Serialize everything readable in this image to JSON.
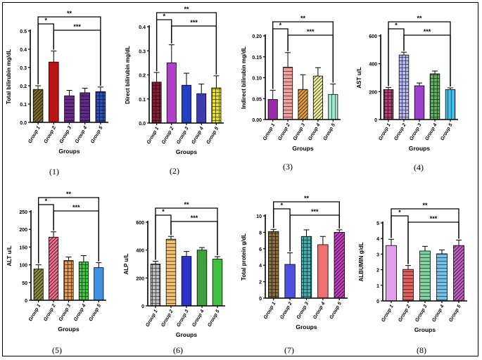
{
  "figure": {
    "xlabel": "Groups",
    "colors": {
      "axis": "#000000",
      "error": "#000000",
      "pattern_lines": "#000000"
    }
  },
  "chart_data": [
    {
      "panel_label": "(1)",
      "type": "bar",
      "ylabel": "Total bilirubin mg/dL",
      "categories": [
        "Group 1",
        "Group 2",
        "Group 3",
        "Group 4",
        "Group 5"
      ],
      "values": [
        0.18,
        0.33,
        0.145,
        0.162,
        0.168
      ],
      "errors": [
        0.02,
        0.06,
        0.03,
        0.025,
        0.025
      ],
      "ylim": [
        0,
        0.5
      ],
      "yticks": [
        "0.0",
        "0.1",
        "0.2",
        "0.3",
        "0.4",
        "0.5"
      ],
      "colors": [
        "#7a6a2c",
        "#b81414",
        "#6a2a8a",
        "#5e2a86",
        "#2d4fb8"
      ],
      "patterns": [
        "hatch",
        "solid",
        "hlines",
        "hlines",
        "grid"
      ],
      "significance": [
        {
          "from": 1,
          "to": 2,
          "label": "*"
        },
        {
          "from": 1,
          "to": 5,
          "label": "**"
        },
        {
          "from": 2,
          "to": 5,
          "label": "***"
        }
      ]
    },
    {
      "panel_label": "(2)",
      "type": "bar",
      "ylabel": "Direct bilirubin mg/dL",
      "categories": [
        "Group 1",
        "Group 2",
        "Group 3",
        "Group 4",
        "Group 5"
      ],
      "values": [
        0.17,
        0.25,
        0.157,
        0.122,
        0.146
      ],
      "errors": [
        0.04,
        0.075,
        0.05,
        0.04,
        0.05
      ],
      "ylim": [
        0,
        0.4
      ],
      "yticks": [
        "0.0",
        "0.1",
        "0.2",
        "0.3",
        "0.4"
      ],
      "colors": [
        "#8a1a3a",
        "#b040c8",
        "#2040c8",
        "#3c3cb0",
        "#e8e020"
      ],
      "patterns": [
        "grid",
        "solid",
        "solid",
        "solid",
        "grid"
      ],
      "significance": [
        {
          "from": 1,
          "to": 2,
          "label": "*"
        },
        {
          "from": 1,
          "to": 5,
          "label": "**"
        },
        {
          "from": 2,
          "to": 5,
          "label": "***"
        }
      ]
    },
    {
      "panel_label": "(3)",
      "type": "bar",
      "ylabel": "Indirect bilirubin mg/dL",
      "categories": [
        "Group 1",
        "Group 2",
        "Group 3",
        "Group 4",
        "Group 5"
      ],
      "values": [
        0.048,
        0.125,
        0.072,
        0.104,
        0.06
      ],
      "errors": [
        0.022,
        0.035,
        0.035,
        0.02,
        0.025
      ],
      "ylim": [
        0,
        0.2
      ],
      "yticks": [
        "0.00",
        "0.05",
        "0.10",
        "0.15",
        "0.20"
      ],
      "colors": [
        "#9a2aa8",
        "#f0a0a0",
        "#e0a040",
        "#f0f0a0",
        "#a0e8d0"
      ],
      "patterns": [
        "solid",
        "hlines",
        "hatch",
        "hatch",
        "vlines"
      ],
      "significance": [
        {
          "from": 1,
          "to": 2,
          "label": "*"
        },
        {
          "from": 1,
          "to": 5,
          "label": "**"
        },
        {
          "from": 2,
          "to": 5,
          "label": "***"
        }
      ]
    },
    {
      "panel_label": "(4)",
      "type": "bar",
      "ylabel": "AST u/L",
      "categories": [
        "Group 1",
        "Group 2",
        "Group 3",
        "Group 4",
        "Group 5"
      ],
      "values": [
        215,
        463,
        242,
        328,
        215
      ],
      "errors": [
        15,
        20,
        20,
        20,
        12
      ],
      "ylim": [
        0,
        600
      ],
      "yticks": [
        "0",
        "200",
        "400",
        "600"
      ],
      "colors": [
        "#b04070",
        "#b8b8f0",
        "#a040d0",
        "#60b060",
        "#40c0e8"
      ],
      "patterns": [
        "grid",
        "grid",
        "solid",
        "grid",
        "vlines"
      ],
      "significance": [
        {
          "from": 1,
          "to": 2,
          "label": "*"
        },
        {
          "from": 1,
          "to": 5,
          "label": "**"
        },
        {
          "from": 2,
          "to": 5,
          "label": "***"
        }
      ]
    },
    {
      "panel_label": "(5)",
      "type": "bar",
      "ylabel": "ALT u/L",
      "categories": [
        "Group 1",
        "Group 2",
        "Group 3",
        "Group 4",
        "Group 5"
      ],
      "values": [
        88,
        178,
        112,
        108,
        92
      ],
      "errors": [
        12,
        15,
        10,
        18,
        14
      ],
      "ylim": [
        0,
        250
      ],
      "yticks": [
        "0",
        "50",
        "100",
        "150",
        "200",
        "250"
      ],
      "colors": [
        "#8a8a40",
        "#f07090",
        "#e89a50",
        "#40c840",
        "#4090e0"
      ],
      "patterns": [
        "hatch",
        "hatch",
        "grid",
        "grid",
        "solid"
      ],
      "significance": [
        {
          "from": 1,
          "to": 2,
          "label": "*"
        },
        {
          "from": 1,
          "to": 5,
          "label": "**"
        },
        {
          "from": 2,
          "to": 5,
          "label": "***"
        }
      ]
    },
    {
      "panel_label": "(6)",
      "type": "bar",
      "ylabel": "ALP u/L",
      "categories": [
        "Group 1",
        "Group 2",
        "Group 3",
        "Group 4",
        "Group 5"
      ],
      "values": [
        300,
        478,
        355,
        400,
        335
      ],
      "errors": [
        20,
        20,
        35,
        18,
        18
      ],
      "ylim": [
        0,
        600
      ],
      "yticks": [
        "0",
        "200",
        "400",
        "600"
      ],
      "colors": [
        "#c0c0c0",
        "#f0c070",
        "#3030c8",
        "#40a040",
        "#40c040"
      ],
      "patterns": [
        "grid",
        "hlines",
        "solid",
        "solid",
        "solid"
      ],
      "significance": [
        {
          "from": 1,
          "to": 2,
          "label": "*"
        },
        {
          "from": 1,
          "to": 5,
          "label": "**"
        },
        {
          "from": 2,
          "to": 5,
          "label": "***"
        }
      ]
    },
    {
      "panel_label": "(7)",
      "type": "bar",
      "ylabel": "Total protein g/dL",
      "categories": [
        "Group 1",
        "Group 2",
        "Group 3",
        "Group 4",
        "Group 5"
      ],
      "values": [
        8.1,
        4.1,
        7.5,
        6.5,
        8.0
      ],
      "errors": [
        0.25,
        1.4,
        0.8,
        1.0,
        0.3
      ],
      "ylim": [
        0,
        10
      ],
      "yticks": [
        "0",
        "2",
        "4",
        "6",
        "8",
        "10"
      ],
      "colors": [
        "#8a7040",
        "#5050e0",
        "#40b0b0",
        "#f07070",
        "#c040c0"
      ],
      "patterns": [
        "grid",
        "solid",
        "grid",
        "solid",
        "hatch"
      ],
      "significance": [
        {
          "from": 1,
          "to": 2,
          "label": "*"
        },
        {
          "from": 1,
          "to": 5,
          "label": "**"
        },
        {
          "from": 2,
          "to": 5,
          "label": "***"
        }
      ]
    },
    {
      "panel_label": "(8)",
      "type": "bar",
      "ylabel": "ALBUMIN g/dL",
      "categories": [
        "Group 1",
        "Group 2",
        "Group 3",
        "Group 4",
        "Group 5"
      ],
      "values": [
        3.55,
        2.02,
        3.2,
        3.02,
        3.55
      ],
      "errors": [
        0.4,
        0.25,
        0.3,
        0.25,
        0.35
      ],
      "ylim": [
        0,
        5
      ],
      "yticks": [
        "0",
        "1",
        "2",
        "3",
        "4",
        "5"
      ],
      "colors": [
        "#e0a0e8",
        "#e06060",
        "#80d0a0",
        "#70c0e8",
        "#c060c0"
      ],
      "patterns": [
        "solid",
        "hlines",
        "hlines",
        "hlines",
        "hatch"
      ],
      "significance": [
        {
          "from": 1,
          "to": 2,
          "label": "*"
        },
        {
          "from": 1,
          "to": 5,
          "label": "**"
        },
        {
          "from": 2,
          "to": 5,
          "label": "***"
        }
      ]
    }
  ]
}
